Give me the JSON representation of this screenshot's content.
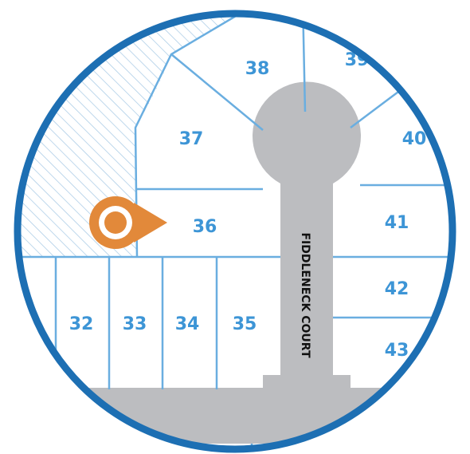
{
  "map": {
    "street_name": "FIDDLENECK COURT",
    "lots": [
      {
        "id": "32",
        "label": "32"
      },
      {
        "id": "33",
        "label": "33"
      },
      {
        "id": "34",
        "label": "34"
      },
      {
        "id": "35",
        "label": "35"
      },
      {
        "id": "36",
        "label": "36"
      },
      {
        "id": "37",
        "label": "37"
      },
      {
        "id": "38",
        "label": "38"
      },
      {
        "id": "39",
        "label": "39"
      },
      {
        "id": "40",
        "label": "40"
      },
      {
        "id": "41",
        "label": "41"
      },
      {
        "id": "42",
        "label": "42"
      },
      {
        "id": "43",
        "label": "43"
      }
    ],
    "marker": {
      "lot": "36",
      "icon": "location-pin-icon"
    },
    "colors": {
      "border": "#1d6fb3",
      "lot_lines": "#6aaee0",
      "lot_labels": "#3d95d6",
      "road": "#bcbdc0",
      "marker": "#e2893a",
      "open_space_hatch": "#a9cbe6"
    }
  }
}
